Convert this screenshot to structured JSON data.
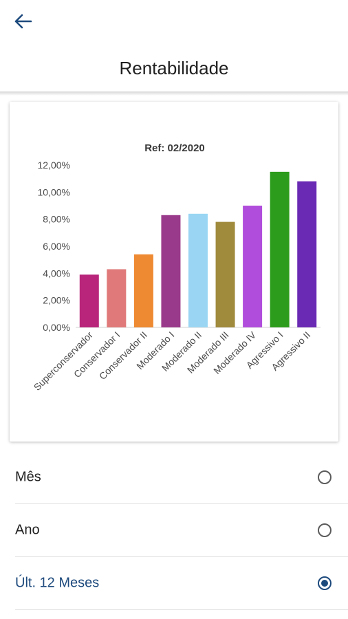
{
  "header": {
    "title": "Rentabilidade"
  },
  "chart_data": {
    "type": "bar",
    "title": "Ref: 02/2020",
    "categories": [
      "Superconservador",
      "Conservador I",
      "Conservador II",
      "Moderado I",
      "Moderado II",
      "Moderado III",
      "Moderado IV",
      "Agressivo I",
      "Agressivo II"
    ],
    "values": [
      3.9,
      4.3,
      5.4,
      8.3,
      8.4,
      7.8,
      9.0,
      11.5,
      10.8
    ],
    "colors": [
      "#b8257a",
      "#e07a7a",
      "#ee8a32",
      "#9a3a8a",
      "#9ad6f4",
      "#a08a3c",
      "#b04ddc",
      "#2c9c1c",
      "#6a2ab4"
    ],
    "yticks": [
      "0,00%",
      "2,00%",
      "4,00%",
      "6,00%",
      "8,00%",
      "10,00%",
      "12,00%"
    ],
    "ylim": [
      0,
      12
    ],
    "xlabel": "",
    "ylabel": "",
    "grid": false
  },
  "options": [
    {
      "label": "Mês",
      "selected": false
    },
    {
      "label": "Ano",
      "selected": false
    },
    {
      "label": "Últ. 12 Meses",
      "selected": true
    }
  ]
}
